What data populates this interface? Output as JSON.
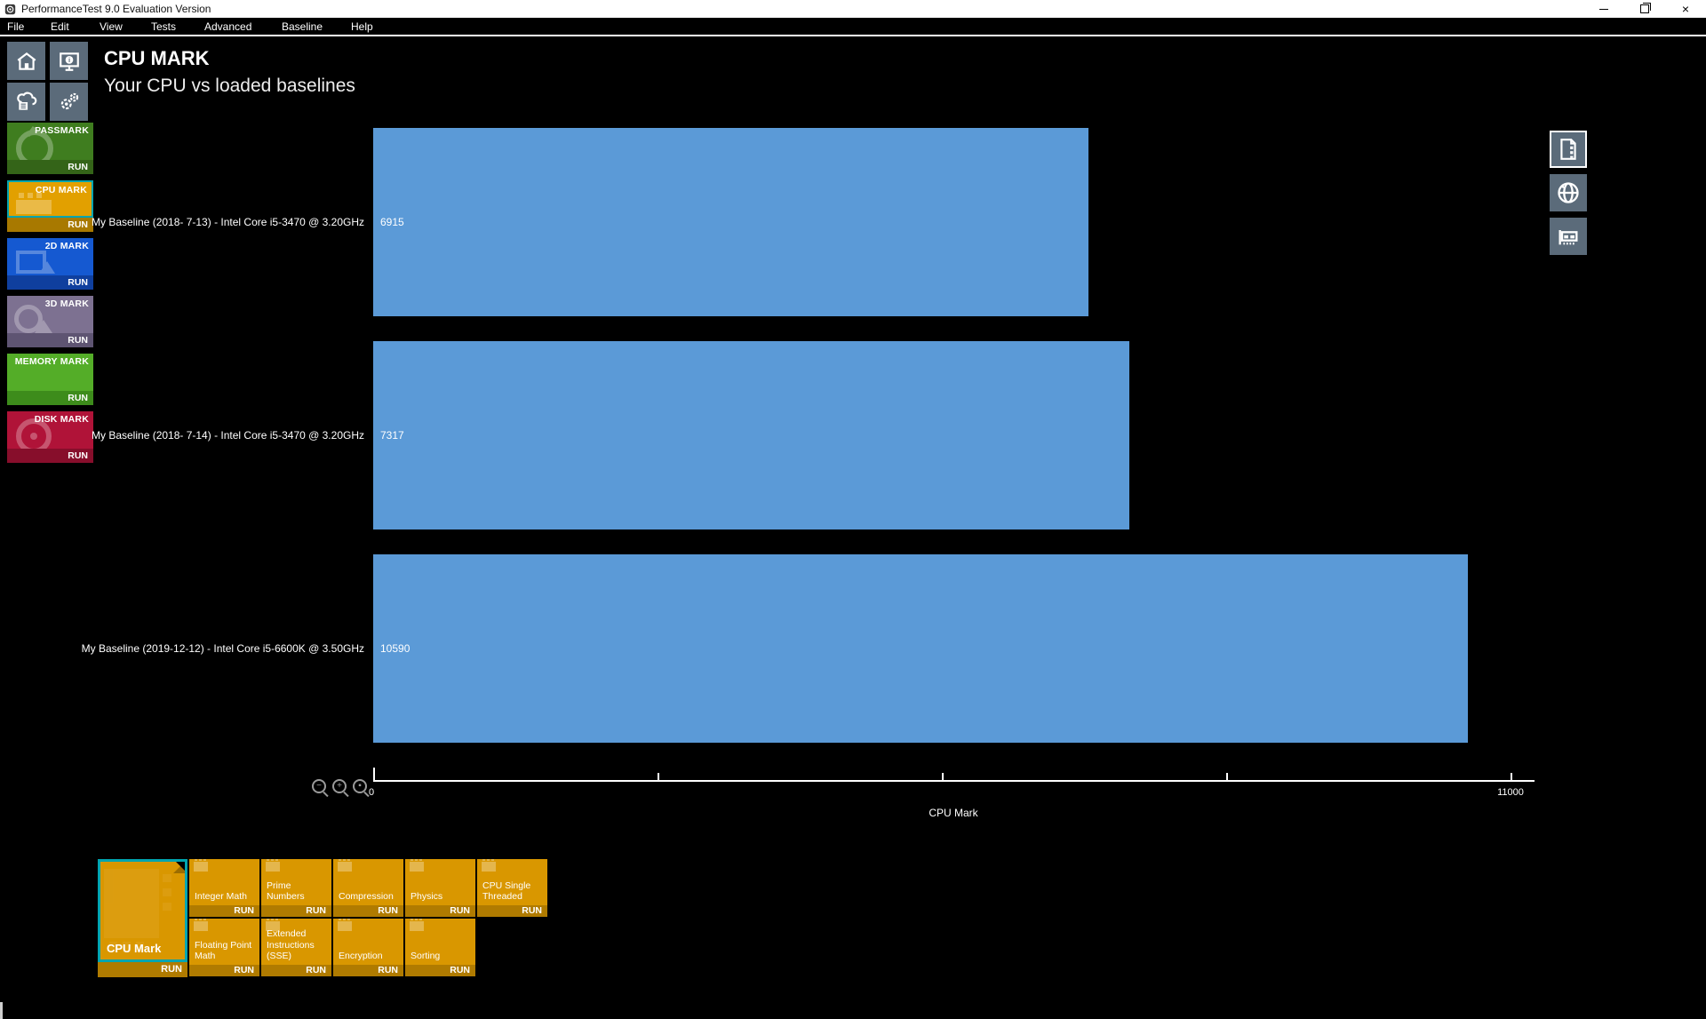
{
  "window": {
    "title": "PerformanceTest 9.0 Evaluation Version",
    "controls": [
      {
        "name": "minimize",
        "glyph": "min"
      },
      {
        "name": "restore",
        "glyph": "restore"
      },
      {
        "name": "close",
        "glyph": "close"
      }
    ]
  },
  "menu": {
    "items": [
      "File",
      "Edit",
      "View",
      "Tests",
      "Advanced",
      "Baseline",
      "Help"
    ]
  },
  "colors": {
    "slate_tile": "#5b6b7a",
    "teal_accent": "#00a5b0",
    "bar_blue": "#5b9ad7",
    "amber_body": "#d99700",
    "amber_strip": "#b07b00"
  },
  "quick_icons": [
    "home-icon",
    "system-info-icon",
    "cloud-server-icon",
    "settings-gears-icon"
  ],
  "sidebar": {
    "run_label": "RUN",
    "tiles": [
      {
        "label": "PASSMARK",
        "icon": "gauge-icon",
        "body": "#3f7d1f",
        "strip": "#346418",
        "selected": false
      },
      {
        "label": "CPU MARK",
        "icon": "cpu-icon",
        "body": "#e2a000",
        "strip": "#a87900",
        "selected": true
      },
      {
        "label": "2D MARK",
        "icon": "2d-icon",
        "body": "#1559d1",
        "strip": "#0f3f9e",
        "selected": false
      },
      {
        "label": "3D MARK",
        "icon": "3d-icon",
        "body": "#7d7191",
        "strip": "#5e5472",
        "selected": false
      },
      {
        "label": "MEMORY MARK",
        "icon": "memory-icon",
        "body": "#54ad28",
        "strip": "#3d8c1b",
        "selected": false
      },
      {
        "label": "DISK MARK",
        "icon": "disk-icon",
        "body": "#b01338",
        "strip": "#870e2b",
        "selected": false
      }
    ]
  },
  "header": {
    "title": "CPU MARK",
    "subtitle": "Your CPU vs loaded baselines"
  },
  "chart_data": {
    "type": "bar",
    "orientation": "horizontal",
    "categories": [
      "My Baseline (2018- 7-13) - Intel Core i5-3470 @ 3.20GHz",
      "My Baseline (2018- 7-14) - Intel Core i5-3470 @ 3.20GHz",
      "My Baseline (2019-12-12) - Intel Core i5-6600K @ 3.50GHz"
    ],
    "values": [
      6915,
      7317,
      10590
    ],
    "value_labels": [
      "6915",
      "7317",
      "10590"
    ],
    "xlabel": "CPU Mark",
    "xlim": [
      0,
      11000
    ],
    "x_ticks": [
      {
        "value": 0,
        "label": "0"
      },
      {
        "value": 2750,
        "label": ""
      },
      {
        "value": 5500,
        "label": ""
      },
      {
        "value": 8250,
        "label": ""
      },
      {
        "value": 11000,
        "label": "11000"
      }
    ],
    "bar_color": "#5b9ad7",
    "grid": false,
    "legend": false
  },
  "zoom_controls": [
    {
      "name": "zoom-out",
      "glyph": "−"
    },
    {
      "name": "zoom-in",
      "glyph": "+"
    },
    {
      "name": "zoom-reset",
      "glyph": "▪"
    }
  ],
  "right_icons": [
    {
      "name": "report-document-icon",
      "bordered": true
    },
    {
      "name": "web-globe-icon",
      "bordered": false
    },
    {
      "name": "hardware-card-icon",
      "bordered": false
    }
  ],
  "tests": {
    "run_label": "RUN",
    "featured": {
      "label": "CPU Mark",
      "selected": true
    },
    "row1": [
      "Integer Math",
      "Prime Numbers",
      "Compression",
      "Physics",
      "CPU Single Threaded"
    ],
    "row2": [
      "Floating Point Math",
      "Extended Instructions (SSE)",
      "Encryption",
      "Sorting"
    ]
  }
}
